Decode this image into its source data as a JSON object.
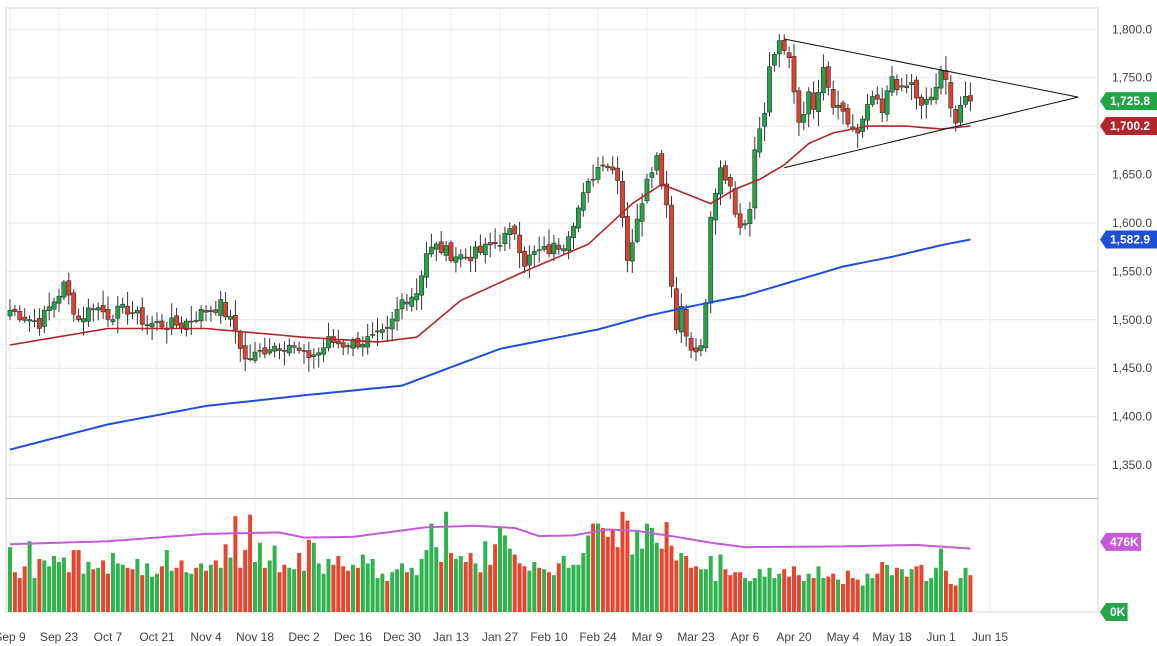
{
  "chart_data": {
    "type": "candlestick",
    "title": "",
    "price_axis": {
      "range": [
        1317,
        1822
      ],
      "ticks": [
        1350,
        1400,
        1450,
        1500,
        1550,
        1600,
        1650,
        1700,
        1750,
        1800
      ],
      "tick_labels": [
        "1,350.0",
        "1,400.0",
        "1,450.0",
        "1,500.0",
        "1,550.0",
        "1,600.0",
        "1,650.0",
        "1,700.0",
        "1,750.0",
        "1,800.0"
      ]
    },
    "volume_axis": {
      "range": [
        0,
        760000
      ],
      "reference_levels": [
        476000,
        0
      ],
      "labels": [
        "476K",
        "0K"
      ]
    },
    "x_axis": {
      "labels": [
        "Sep 9",
        "Sep 23",
        "Oct 7",
        "Oct 21",
        "Nov 4",
        "Nov 18",
        "Dec 2",
        "Dec 16",
        "Dec 30",
        "Jan 13",
        "Jan 27",
        "Feb 10",
        "Feb 24",
        "Mar 9",
        "Mar 23",
        "Apr 6",
        "Apr 20",
        "May 4",
        "May 18",
        "Jun 1",
        "Jun 15"
      ],
      "label_bar_index": [
        0,
        10,
        20,
        30,
        40,
        50,
        60,
        70,
        80,
        90,
        100,
        110,
        120,
        130,
        140,
        150,
        160,
        170,
        180,
        190,
        200
      ]
    },
    "anchors": [
      [
        0,
        1510
      ],
      [
        3,
        1503
      ],
      [
        6,
        1497
      ],
      [
        11,
        1535
      ],
      [
        14,
        1500
      ],
      [
        17,
        1515
      ],
      [
        20,
        1505
      ],
      [
        24,
        1511
      ],
      [
        28,
        1496
      ],
      [
        35,
        1495
      ],
      [
        40,
        1510
      ],
      [
        43,
        1515
      ],
      [
        46,
        1490
      ],
      [
        48,
        1458
      ],
      [
        50,
        1463
      ],
      [
        53,
        1473
      ],
      [
        57,
        1475
      ],
      [
        60,
        1462
      ],
      [
        63,
        1466
      ],
      [
        65,
        1478
      ],
      [
        68,
        1475
      ],
      [
        71,
        1477
      ],
      [
        74,
        1480
      ],
      [
        77,
        1486
      ],
      [
        80,
        1520
      ],
      [
        83,
        1529
      ],
      [
        85,
        1570
      ],
      [
        87,
        1575
      ],
      [
        90,
        1568
      ],
      [
        93,
        1565
      ],
      [
        96,
        1570
      ],
      [
        100,
        1582
      ],
      [
        103,
        1592
      ],
      [
        105,
        1560
      ],
      [
        107,
        1568
      ],
      [
        110,
        1572
      ],
      [
        113,
        1580
      ],
      [
        116,
        1615
      ],
      [
        119,
        1650
      ],
      [
        121,
        1665
      ],
      [
        124,
        1650
      ],
      [
        126,
        1565
      ],
      [
        128,
        1600
      ],
      [
        130,
        1650
      ],
      [
        132,
        1668
      ],
      [
        134,
        1620
      ],
      [
        135,
        1540
      ],
      [
        136,
        1490
      ],
      [
        137,
        1515
      ],
      [
        139,
        1465
      ],
      [
        141,
        1470
      ],
      [
        142,
        1520
      ],
      [
        143,
        1600
      ],
      [
        145,
        1655
      ],
      [
        147,
        1640
      ],
      [
        149,
        1590
      ],
      [
        151,
        1620
      ],
      [
        152,
        1680
      ],
      [
        154,
        1720
      ],
      [
        155,
        1760
      ],
      [
        157,
        1790
      ],
      [
        159,
        1765
      ],
      [
        161,
        1705
      ],
      [
        163,
        1730
      ],
      [
        164,
        1715
      ],
      [
        166,
        1755
      ],
      [
        168,
        1720
      ],
      [
        170,
        1710
      ],
      [
        173,
        1690
      ],
      [
        176,
        1730
      ],
      [
        178,
        1712
      ],
      [
        180,
        1752
      ],
      [
        182,
        1735
      ],
      [
        184,
        1743
      ],
      [
        186,
        1718
      ],
      [
        188,
        1730
      ],
      [
        190,
        1752
      ],
      [
        191,
        1745
      ],
      [
        192,
        1725
      ],
      [
        193,
        1705
      ],
      [
        194,
        1722
      ],
      [
        196,
        1725.8
      ]
    ],
    "anchor_note_fields": [
      "bar_index",
      "close_price"
    ],
    "moving_averages": [
      {
        "name": "",
        "color": "#b0272a",
        "anchors": [
          [
            0,
            1474
          ],
          [
            20,
            1491
          ],
          [
            40,
            1491
          ],
          [
            60,
            1482
          ],
          [
            75,
            1477
          ],
          [
            83,
            1482
          ],
          [
            92,
            1520
          ],
          [
            105,
            1550
          ],
          [
            118,
            1578
          ],
          [
            127,
            1620
          ],
          [
            133,
            1640
          ],
          [
            138,
            1630
          ],
          [
            143,
            1620
          ],
          [
            148,
            1635
          ],
          [
            153,
            1645
          ],
          [
            158,
            1660
          ],
          [
            163,
            1682
          ],
          [
            168,
            1693
          ],
          [
            175,
            1700
          ],
          [
            183,
            1700
          ],
          [
            190,
            1697
          ],
          [
            196,
            1700.2
          ]
        ]
      },
      {
        "name": "",
        "color": "#1f4fd6",
        "anchors": [
          [
            0,
            1366
          ],
          [
            20,
            1392
          ],
          [
            40,
            1411
          ],
          [
            60,
            1422
          ],
          [
            80,
            1432
          ],
          [
            100,
            1470
          ],
          [
            120,
            1490
          ],
          [
            130,
            1504
          ],
          [
            140,
            1515
          ],
          [
            150,
            1525
          ],
          [
            160,
            1540
          ],
          [
            170,
            1555
          ],
          [
            180,
            1565
          ],
          [
            190,
            1577
          ],
          [
            196,
            1582.9
          ]
        ]
      }
    ],
    "trendlines": [
      {
        "from": [
          158,
          1790
        ],
        "to": [
          218,
          1730
        ]
      },
      {
        "from": [
          158,
          1657
        ],
        "to": [
          218,
          1730
        ]
      }
    ],
    "badges": [
      {
        "label": "1,725.8",
        "value": 1725.8,
        "color": "#22a447"
      },
      {
        "label": "1,700.2",
        "value": 1700.2,
        "color": "#b0272a"
      },
      {
        "label": "1,582.9",
        "value": 1582.9,
        "color": "#1f4fd6"
      }
    ],
    "volume_badges": [
      {
        "label": "476K",
        "value": 476000,
        "color": "#c65bd8"
      },
      {
        "label": "0K",
        "value": 0,
        "color": "#22a447"
      }
    ],
    "volume_average": {
      "color": "#c65bd8",
      "anchors": [
        [
          0,
          460000
        ],
        [
          20,
          480000
        ],
        [
          40,
          530000
        ],
        [
          55,
          540000
        ],
        [
          60,
          505000
        ],
        [
          70,
          510000
        ],
        [
          85,
          575000
        ],
        [
          95,
          585000
        ],
        [
          103,
          570000
        ],
        [
          108,
          515000
        ],
        [
          115,
          520000
        ],
        [
          122,
          560000
        ],
        [
          128,
          550000
        ],
        [
          136,
          510000
        ],
        [
          143,
          470000
        ],
        [
          150,
          440000
        ],
        [
          170,
          445000
        ],
        [
          185,
          455000
        ],
        [
          196,
          430000
        ]
      ]
    },
    "volume_bars_values": [
      440000,
      270000,
      230000,
      310000,
      480000,
      230000,
      360000,
      350000,
      310000,
      380000,
      340000,
      370000,
      270000,
      420000,
      420000,
      260000,
      340000,
      290000,
      300000,
      350000,
      260000,
      400000,
      330000,
      320000,
      300000,
      290000,
      360000,
      250000,
      330000,
      240000,
      260000,
      310000,
      420000,
      280000,
      300000,
      350000,
      270000,
      260000,
      300000,
      330000,
      280000,
      320000,
      350000,
      300000,
      460000,
      370000,
      650000,
      300000,
      420000,
      660000,
      340000,
      470000,
      300000,
      350000,
      450000,
      270000,
      320000,
      300000,
      290000,
      400000,
      280000,
      490000,
      470000,
      330000,
      260000,
      360000,
      320000,
      380000,
      310000,
      280000,
      320000,
      300000,
      390000,
      330000,
      360000,
      230000,
      260000,
      210000,
      270000,
      290000,
      330000,
      270000,
      300000,
      250000,
      360000,
      420000,
      600000,
      440000,
      340000,
      680000,
      400000,
      360000,
      380000,
      340000,
      400000,
      330000,
      270000,
      480000,
      320000,
      460000,
      580000,
      520000,
      430000,
      390000,
      330000,
      310000,
      280000,
      340000,
      300000,
      290000,
      270000,
      250000,
      330000,
      380000,
      300000,
      320000,
      320000,
      400000,
      520000,
      600000,
      600000,
      570000,
      510000,
      560000,
      440000,
      680000,
      620000,
      390000,
      550000,
      430000,
      600000,
      570000,
      470000,
      430000,
      610000,
      450000,
      350000,
      400000,
      380000,
      300000,
      310000,
      290000,
      290000,
      380000,
      210000,
      390000,
      290000,
      250000,
      270000,
      270000,
      230000,
      210000,
      230000,
      290000,
      240000,
      300000,
      230000,
      260000,
      290000,
      240000,
      310000,
      250000,
      210000,
      260000,
      230000,
      310000,
      230000,
      240000,
      260000,
      220000,
      190000,
      280000,
      230000,
      220000,
      180000,
      260000,
      230000,
      260000,
      340000,
      320000,
      250000,
      300000,
      290000,
      240000,
      290000,
      310000,
      320000,
      210000,
      230000,
      300000,
      430000,
      280000,
      190000,
      180000,
      230000,
      300000,
      250000
    ],
    "volume_bar_note": "Volume bars listed in sequence from left edge of the chart; colors follow candle direction."
  }
}
